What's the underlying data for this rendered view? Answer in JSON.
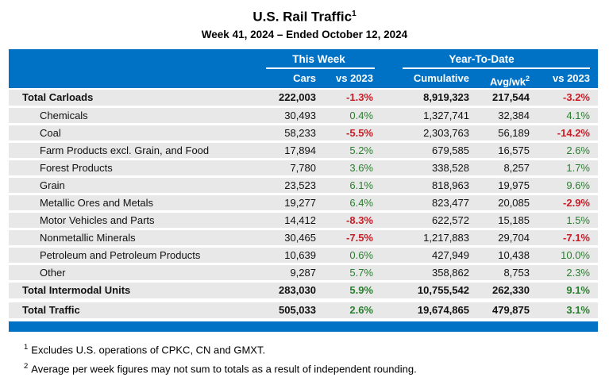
{
  "title": "U.S. Rail Traffic",
  "title_footnote_marker": "1",
  "subtitle": "Week 41, 2024 – Ended October 12, 2024",
  "colors": {
    "header_blue": "#0072C6",
    "row_gray": "#E8E8E8",
    "negative_red": "#C81E28",
    "positive_green": "#2A7E2F"
  },
  "table": {
    "group_headers": [
      {
        "label": "This Week"
      },
      {
        "label": "Year-To-Date"
      }
    ],
    "sub_columns": [
      {
        "label": "Cars"
      },
      {
        "label": "vs 2023"
      },
      {
        "label": "Cumulative"
      },
      {
        "label": "Avg/wk",
        "sup": "2"
      },
      {
        "label": "vs 2023"
      }
    ],
    "rows": [
      {
        "label": "Total Carloads",
        "bold": true,
        "cars": "222,003",
        "week_vs_2023": "-1.3%",
        "cumulative": "8,919,323",
        "avg_wk": "217,544",
        "ytd_vs_2023": "-3.2%"
      },
      {
        "label": "Chemicals",
        "cars": "30,493",
        "week_vs_2023": "0.4%",
        "cumulative": "1,327,741",
        "avg_wk": "32,384",
        "ytd_vs_2023": "4.1%"
      },
      {
        "label": "Coal",
        "cars": "58,233",
        "week_vs_2023": "-5.5%",
        "cumulative": "2,303,763",
        "avg_wk": "56,189",
        "ytd_vs_2023": "-14.2%"
      },
      {
        "label": "Farm Products excl. Grain, and Food",
        "cars": "17,894",
        "week_vs_2023": "5.2%",
        "cumulative": "679,585",
        "avg_wk": "16,575",
        "ytd_vs_2023": "2.6%"
      },
      {
        "label": "Forest Products",
        "cars": "7,780",
        "week_vs_2023": "3.6%",
        "cumulative": "338,528",
        "avg_wk": "8,257",
        "ytd_vs_2023": "1.7%"
      },
      {
        "label": "Grain",
        "cars": "23,523",
        "week_vs_2023": "6.1%",
        "cumulative": "818,963",
        "avg_wk": "19,975",
        "ytd_vs_2023": "9.6%"
      },
      {
        "label": "Metallic Ores and Metals",
        "cars": "19,277",
        "week_vs_2023": "6.4%",
        "cumulative": "823,477",
        "avg_wk": "20,085",
        "ytd_vs_2023": "-2.9%"
      },
      {
        "label": "Motor Vehicles and Parts",
        "cars": "14,412",
        "week_vs_2023": "-8.3%",
        "cumulative": "622,572",
        "avg_wk": "15,185",
        "ytd_vs_2023": "1.5%"
      },
      {
        "label": "Nonmetallic Minerals",
        "cars": "30,465",
        "week_vs_2023": "-7.5%",
        "cumulative": "1,217,883",
        "avg_wk": "29,704",
        "ytd_vs_2023": "-7.1%"
      },
      {
        "label": "Petroleum and Petroleum Products",
        "cars": "10,639",
        "week_vs_2023": "0.6%",
        "cumulative": "427,949",
        "avg_wk": "10,438",
        "ytd_vs_2023": "10.0%"
      },
      {
        "label": "Other",
        "cars": "9,287",
        "week_vs_2023": "5.7%",
        "cumulative": "358,862",
        "avg_wk": "8,753",
        "ytd_vs_2023": "2.3%"
      },
      {
        "label": "Total Intermodal Units",
        "bold": true,
        "spaced": true,
        "cars": "283,030",
        "week_vs_2023": "5.9%",
        "cumulative": "10,755,542",
        "avg_wk": "262,330",
        "ytd_vs_2023": "9.1%"
      },
      {
        "label": "Total Traffic",
        "bold": true,
        "spaced": true,
        "last": true,
        "cars": "505,033",
        "week_vs_2023": "2.6%",
        "cumulative": "19,674,865",
        "avg_wk": "479,875",
        "ytd_vs_2023": "3.1%"
      }
    ]
  },
  "footnotes": [
    {
      "marker": "1",
      "text": "Excludes U.S. operations of CPKC, CN and GMXT."
    },
    {
      "marker": "2",
      "text": "Average per week figures may not sum to totals as a result of independent rounding."
    }
  ]
}
